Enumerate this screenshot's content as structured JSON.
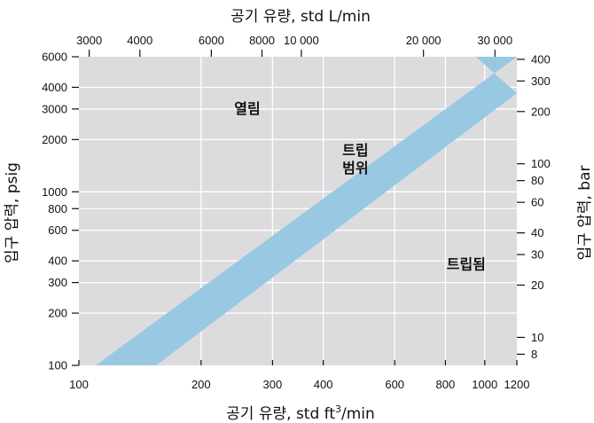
{
  "chart_data": {
    "type": "area",
    "title": "",
    "xlabel": "공기 유량, std ft³/min",
    "xlabel_parts": {
      "base": "공기 유량, std ft",
      "sup": "3",
      "tail": "/min"
    },
    "ylabel": "입구 압력, psig",
    "x2label": "공기 유량, std L/min",
    "y2label": "입구 압력, bar",
    "x_scale": "log",
    "y_scale": "log",
    "xlim": [
      100,
      1200
    ],
    "ylim": [
      100,
      6000
    ],
    "x2lim": [
      2830,
      33980
    ],
    "y2lim": [
      6.9,
      413.7
    ],
    "grid": true,
    "x_ticks": [
      {
        "value": 100,
        "label": "100"
      },
      {
        "value": 200,
        "label": "200"
      },
      {
        "value": 300,
        "label": "300"
      },
      {
        "value": 400,
        "label": "400"
      },
      {
        "value": 600,
        "label": "600"
      },
      {
        "value": 800,
        "label": "800"
      },
      {
        "value": 1000,
        "label": "1000"
      },
      {
        "value": 1200,
        "label": "1200"
      }
    ],
    "y_ticks": [
      {
        "value": 100,
        "label": "100"
      },
      {
        "value": 200,
        "label": "200"
      },
      {
        "value": 300,
        "label": "300"
      },
      {
        "value": 400,
        "label": "400"
      },
      {
        "value": 600,
        "label": "600"
      },
      {
        "value": 800,
        "label": "800"
      },
      {
        "value": 1000,
        "label": "1000"
      },
      {
        "value": 2000,
        "label": "2000"
      },
      {
        "value": 3000,
        "label": "3000"
      },
      {
        "value": 4000,
        "label": "4000"
      },
      {
        "value": 6000,
        "label": "6000"
      }
    ],
    "x2_ticks": [
      {
        "value": 3000,
        "label": "3000"
      },
      {
        "value": 4000,
        "label": "4000"
      },
      {
        "value": 6000,
        "label": "6000"
      },
      {
        "value": 8000,
        "label": "8000"
      },
      {
        "value": 10000,
        "label": "10 000"
      },
      {
        "value": 20000,
        "label": "20 000"
      },
      {
        "value": 30000,
        "label": "30 000"
      }
    ],
    "y2_ticks": [
      {
        "value": 8,
        "label": "8"
      },
      {
        "value": 10,
        "label": "10"
      },
      {
        "value": 20,
        "label": "20"
      },
      {
        "value": 30,
        "label": "30"
      },
      {
        "value": 40,
        "label": "40"
      },
      {
        "value": 60,
        "label": "60"
      },
      {
        "value": 80,
        "label": "80"
      },
      {
        "value": 100,
        "label": "100"
      },
      {
        "value": 200,
        "label": "200"
      },
      {
        "value": 300,
        "label": "300"
      },
      {
        "value": 400,
        "label": "400"
      }
    ],
    "band": {
      "lower_edge": [
        {
          "x": 155,
          "y": 100
        },
        {
          "x": 1200,
          "y": 3700
        }
      ],
      "upper_edge": [
        {
          "x": 110,
          "y": 100
        },
        {
          "x": 1200,
          "y": 6000
        },
        {
          "x": 950,
          "y": 6000
        }
      ],
      "color": "#99c8e2"
    },
    "annotations": [
      {
        "text": "열림",
        "x": 260,
        "y": 3000
      },
      {
        "text": "트립\n범위",
        "x": 480,
        "y": 1550
      },
      {
        "text": "트립됨",
        "x": 900,
        "y": 380
      }
    ],
    "colors": {
      "plot_bg": "#dcdcde",
      "band": "#99c8e2",
      "grid": "#ffffff",
      "axis": "#111111"
    }
  }
}
